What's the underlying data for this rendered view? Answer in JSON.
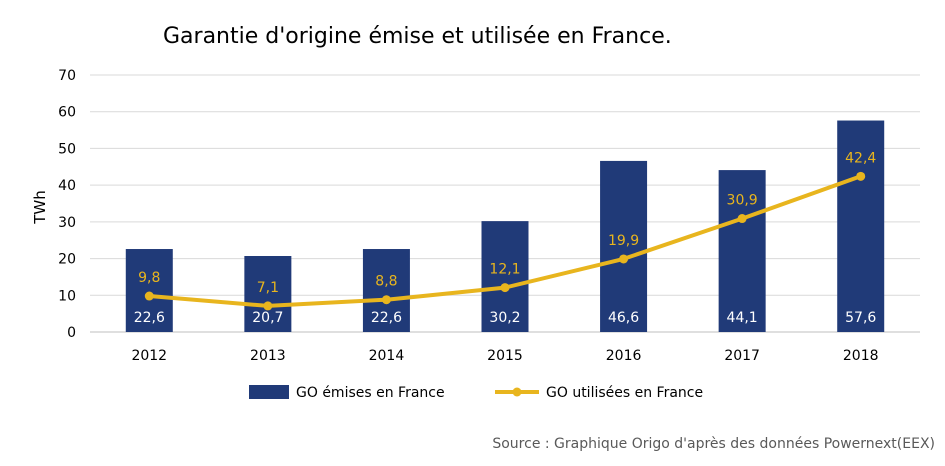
{
  "chart_data": {
    "type": "bar",
    "title": "Garantie d'origine émise et utilisée en France.",
    "ylabel": "TWh",
    "xlabel": "",
    "ylim": [
      0,
      70
    ],
    "yticks": [
      0,
      10,
      20,
      30,
      40,
      50,
      60,
      70
    ],
    "grid": true,
    "legend_position": "bottom",
    "categories": [
      "2012",
      "2013",
      "2014",
      "2015",
      "2016",
      "2017",
      "2018"
    ],
    "series": [
      {
        "name": "GO émises en France",
        "type": "bar",
        "color": "#203A78",
        "values": [
          22.6,
          20.7,
          22.6,
          30.2,
          46.6,
          44.1,
          57.6
        ],
        "labels": [
          "22,6",
          "20,7",
          "22,6",
          "30,2",
          "46,6",
          "44,1",
          "57,6"
        ]
      },
      {
        "name": "GO utilisées en France",
        "type": "line",
        "color": "#E8B51E",
        "values": [
          9.8,
          7.1,
          8.8,
          12.1,
          19.9,
          30.9,
          42.4
        ],
        "labels": [
          "9,8",
          "7,1",
          "8,8",
          "12,1",
          "19,9",
          "30,9",
          "42,4"
        ]
      }
    ],
    "source": "Source : Graphique Origo d'après des données Powernext(EEX)"
  }
}
